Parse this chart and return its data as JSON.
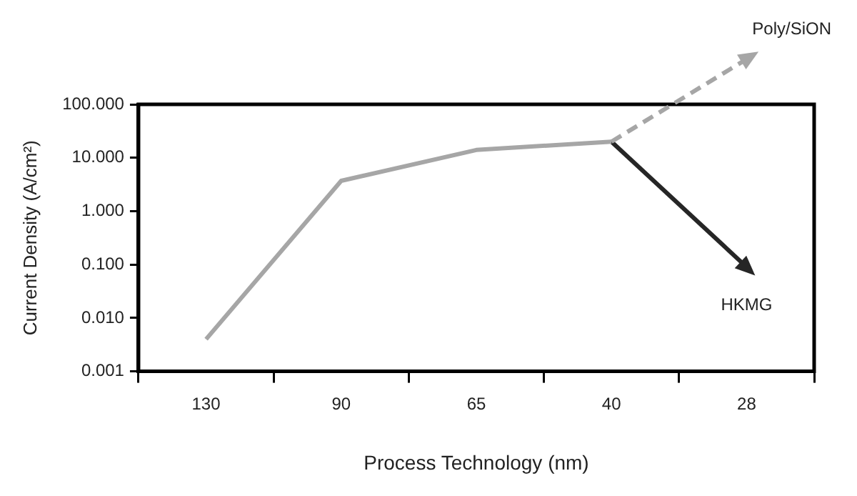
{
  "chart_data": {
    "type": "line",
    "xlabel": "Process Technology (nm)",
    "ylabel": "Current Density (A/cm²)",
    "categories": [
      "130",
      "90",
      "65",
      "40",
      "28"
    ],
    "series": [
      {
        "color": "#a6a6a6",
        "values": [
          0.004,
          3.7,
          14,
          20,
          null
        ]
      },
      {
        "name": "HKMG",
        "color": "#262626",
        "values": [
          null,
          null,
          null,
          20,
          0.09
        ]
      }
    ],
    "log": "y",
    "ylim": [
      0.001,
      100
    ],
    "yticks": [
      {
        "value": 0.001,
        "label": "0.001"
      },
      {
        "value": 0.01,
        "label": "0.010"
      },
      {
        "value": 0.1,
        "label": "0.100"
      },
      {
        "value": 1,
        "label": "1.000"
      },
      {
        "value": 10,
        "label": "10.000"
      },
      {
        "value": 100,
        "label": "100.000"
      }
    ],
    "annotations": [
      "Poly/SiON"
    ],
    "grid": false,
    "legend": false,
    "line_style": "solid"
  }
}
